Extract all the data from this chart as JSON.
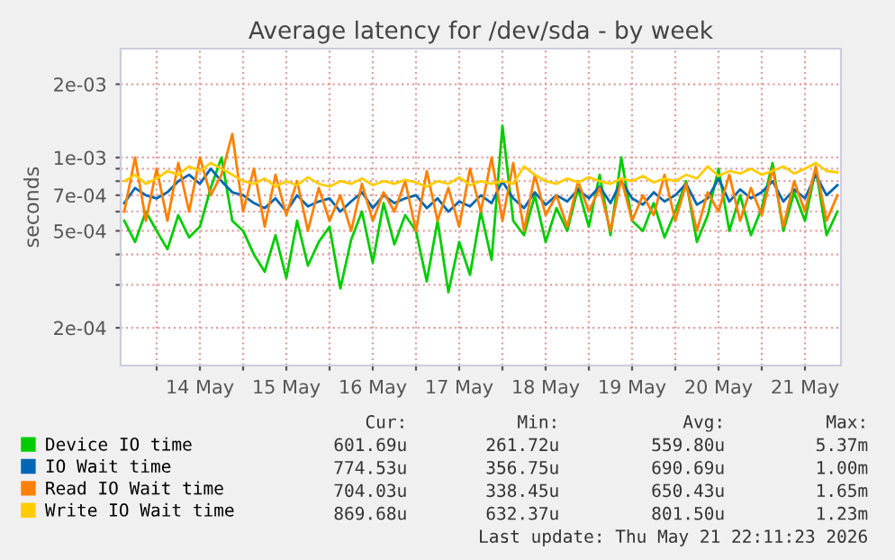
{
  "chart_data": {
    "type": "line",
    "title": "Average latency for /dev/sda - by week",
    "ylabel": "seconds",
    "log": "y",
    "grid": true,
    "legend": "bottom",
    "line_style": "solid",
    "x": [
      "2026-05-13T15:00",
      "2026-05-13T18:00",
      "2026-05-13T21:00",
      "2026-05-14T00:00",
      "2026-05-14T03:00",
      "2026-05-14T06:00",
      "2026-05-14T09:00",
      "2026-05-14T12:00",
      "2026-05-14T15:00",
      "2026-05-14T18:00",
      "2026-05-14T21:00",
      "2026-05-15T00:00",
      "2026-05-15T03:00",
      "2026-05-15T06:00",
      "2026-05-15T09:00",
      "2026-05-15T12:00",
      "2026-05-15T15:00",
      "2026-05-15T18:00",
      "2026-05-15T21:00",
      "2026-05-16T00:00",
      "2026-05-16T03:00",
      "2026-05-16T06:00",
      "2026-05-16T09:00",
      "2026-05-16T12:00",
      "2026-05-16T15:00",
      "2026-05-16T18:00",
      "2026-05-16T21:00",
      "2026-05-17T00:00",
      "2026-05-17T03:00",
      "2026-05-17T06:00",
      "2026-05-17T09:00",
      "2026-05-17T12:00",
      "2026-05-17T15:00",
      "2026-05-17T18:00",
      "2026-05-17T21:00",
      "2026-05-18T00:00",
      "2026-05-18T03:00",
      "2026-05-18T06:00",
      "2026-05-18T09:00",
      "2026-05-18T12:00",
      "2026-05-18T15:00",
      "2026-05-18T18:00",
      "2026-05-18T21:00",
      "2026-05-19T00:00",
      "2026-05-19T03:00",
      "2026-05-19T06:00",
      "2026-05-19T09:00",
      "2026-05-19T12:00",
      "2026-05-19T15:00",
      "2026-05-19T18:00",
      "2026-05-19T21:00",
      "2026-05-20T00:00",
      "2026-05-20T03:00",
      "2026-05-20T06:00",
      "2026-05-20T09:00",
      "2026-05-20T12:00",
      "2026-05-20T15:00",
      "2026-05-20T18:00",
      "2026-05-20T21:00",
      "2026-05-21T00:00",
      "2026-05-21T03:00",
      "2026-05-21T06:00",
      "2026-05-21T09:00",
      "2026-05-21T12:00",
      "2026-05-21T15:00",
      "2026-05-21T18:00",
      "2026-05-21T21:00"
    ],
    "xlim": [
      "2026-05-13T14:00",
      "2026-05-21T22:00"
    ],
    "xticks": [
      {
        "value": "2026-05-14T00:00",
        "label": null
      },
      {
        "value": "2026-05-14T12:00",
        "label": "14 May"
      },
      {
        "value": "2026-05-15T00:00",
        "label": null
      },
      {
        "value": "2026-05-15T12:00",
        "label": "15 May"
      },
      {
        "value": "2026-05-16T00:00",
        "label": null
      },
      {
        "value": "2026-05-16T12:00",
        "label": "16 May"
      },
      {
        "value": "2026-05-17T00:00",
        "label": null
      },
      {
        "value": "2026-05-17T12:00",
        "label": "17 May"
      },
      {
        "value": "2026-05-18T00:00",
        "label": null
      },
      {
        "value": "2026-05-18T12:00",
        "label": "18 May"
      },
      {
        "value": "2026-05-19T00:00",
        "label": null
      },
      {
        "value": "2026-05-19T12:00",
        "label": "19 May"
      },
      {
        "value": "2026-05-20T00:00",
        "label": null
      },
      {
        "value": "2026-05-20T12:00",
        "label": "20 May"
      },
      {
        "value": "2026-05-21T00:00",
        "label": null
      },
      {
        "value": "2026-05-21T12:00",
        "label": "21 May"
      }
    ],
    "ylim": [
      0.00014,
      0.0028
    ],
    "yticks": [
      {
        "value": 0.0002,
        "label": "2e-04"
      },
      {
        "value": 0.0003,
        "label": null
      },
      {
        "value": 0.0004,
        "label": null
      },
      {
        "value": 0.0005,
        "label": "5e-04"
      },
      {
        "value": 0.0006,
        "label": null
      },
      {
        "value": 0.0007,
        "label": "7e-04"
      },
      {
        "value": 0.0008,
        "label": null
      },
      {
        "value": 0.0009,
        "label": null
      },
      {
        "value": 0.001,
        "label": "1e-03"
      },
      {
        "value": 0.002,
        "label": "2e-03"
      }
    ],
    "series": [
      {
        "name": "Device IO time",
        "color": "#00cc00",
        "values": [
          0.00055,
          0.00045,
          0.0006,
          0.0005,
          0.00042,
          0.00058,
          0.00047,
          0.00052,
          0.00075,
          0.001,
          0.00055,
          0.0005,
          0.0004,
          0.00034,
          0.00048,
          0.00032,
          0.00055,
          0.00036,
          0.00045,
          0.00052,
          0.00029,
          0.00046,
          0.0006,
          0.00037,
          0.00065,
          0.00044,
          0.00058,
          0.0005,
          0.00031,
          0.00055,
          0.00028,
          0.00045,
          0.00033,
          0.0006,
          0.00038,
          0.00135,
          0.00055,
          0.00048,
          0.0007,
          0.00045,
          0.00062,
          0.0005,
          0.00075,
          0.00052,
          0.00085,
          0.00048,
          0.001,
          0.00055,
          0.0005,
          0.00065,
          0.00047,
          0.0006,
          0.0008,
          0.00045,
          0.00058,
          0.0009,
          0.0005,
          0.0007,
          0.00048,
          0.00062,
          0.00095,
          0.0005,
          0.00072,
          0.00055,
          0.0009,
          0.00048,
          0.0006
        ]
      },
      {
        "name": "IO Wait time",
        "color": "#0066b3",
        "values": [
          0.00065,
          0.00075,
          0.0007,
          0.00068,
          0.00072,
          0.0008,
          0.00085,
          0.00078,
          0.0009,
          0.0008,
          0.00072,
          0.0007,
          0.00065,
          0.00062,
          0.00068,
          0.0006,
          0.0007,
          0.00063,
          0.00066,
          0.00068,
          0.0006,
          0.00066,
          0.00072,
          0.00062,
          0.0007,
          0.00065,
          0.00068,
          0.0007,
          0.00062,
          0.00068,
          0.0006,
          0.00066,
          0.00063,
          0.0007,
          0.00065,
          0.0008,
          0.00068,
          0.00062,
          0.00072,
          0.00064,
          0.0007,
          0.00066,
          0.00074,
          0.00068,
          0.00076,
          0.00065,
          0.0008,
          0.00068,
          0.00064,
          0.00072,
          0.00066,
          0.0007,
          0.00078,
          0.00064,
          0.00068,
          0.00082,
          0.00066,
          0.00074,
          0.00068,
          0.00072,
          0.0008,
          0.00066,
          0.00074,
          0.00068,
          0.00085,
          0.0007,
          0.00077
        ]
      },
      {
        "name": "Read IO Wait time",
        "color": "#ff8000",
        "values": [
          0.0006,
          0.001,
          0.00055,
          0.0009,
          0.00055,
          0.00095,
          0.0006,
          0.001,
          0.0007,
          0.00085,
          0.00125,
          0.0006,
          0.0009,
          0.00052,
          0.00085,
          0.00058,
          0.0008,
          0.0005,
          0.00075,
          0.00055,
          0.0007,
          0.0005,
          0.00078,
          0.00055,
          0.00072,
          0.0006,
          0.0008,
          0.0005,
          0.00088,
          0.00055,
          0.00075,
          0.00052,
          0.0009,
          0.0006,
          0.001,
          0.00055,
          0.00095,
          0.0005,
          0.00085,
          0.00058,
          0.0007,
          0.00052,
          0.0008,
          0.0006,
          0.00075,
          0.0005,
          0.00082,
          0.00055,
          0.0007,
          0.00058,
          0.00085,
          0.00055,
          0.00078,
          0.0005,
          0.00072,
          0.0006,
          0.00085,
          0.00055,
          0.00075,
          0.00058,
          0.0009,
          0.00052,
          0.0008,
          0.0006,
          0.00092,
          0.00055,
          0.0007
        ]
      },
      {
        "name": "Write IO Wait time",
        "color": "#ffcc00",
        "values": [
          0.0008,
          0.00085,
          0.00078,
          0.00082,
          0.00088,
          0.00085,
          0.00092,
          0.00088,
          0.00095,
          0.0009,
          0.00085,
          0.0008,
          0.00078,
          0.00082,
          0.00076,
          0.0008,
          0.00077,
          0.00083,
          0.00078,
          0.00076,
          0.0008,
          0.00078,
          0.00082,
          0.00077,
          0.0008,
          0.00078,
          0.00081,
          0.00079,
          0.00076,
          0.0008,
          0.00078,
          0.00083,
          0.00077,
          0.0008,
          0.00078,
          0.0008,
          0.00078,
          0.00092,
          0.00085,
          0.0008,
          0.00078,
          0.00082,
          0.00079,
          0.00083,
          0.0008,
          0.00078,
          0.00082,
          0.0008,
          0.00084,
          0.00079,
          0.00082,
          0.0008,
          0.00085,
          0.00082,
          0.00092,
          0.00084,
          0.00088,
          0.00086,
          0.0009,
          0.00085,
          0.00088,
          0.00092,
          0.00086,
          0.0009,
          0.00095,
          0.00088,
          0.00087
        ]
      }
    ],
    "annotations": [
      "Cur:",
      "Min:",
      "Avg:",
      "Max:",
      "601.69u",
      "261.72u",
      "559.80u",
      "5.37m",
      "774.53u",
      "356.75u",
      "690.69u",
      "1.00m",
      "704.03u",
      "338.45u",
      "650.43u",
      "1.65m",
      "869.68u",
      "632.37u",
      "801.50u",
      "1.23m",
      "Last update: Thu May 21 22:11:23 2026"
    ]
  }
}
